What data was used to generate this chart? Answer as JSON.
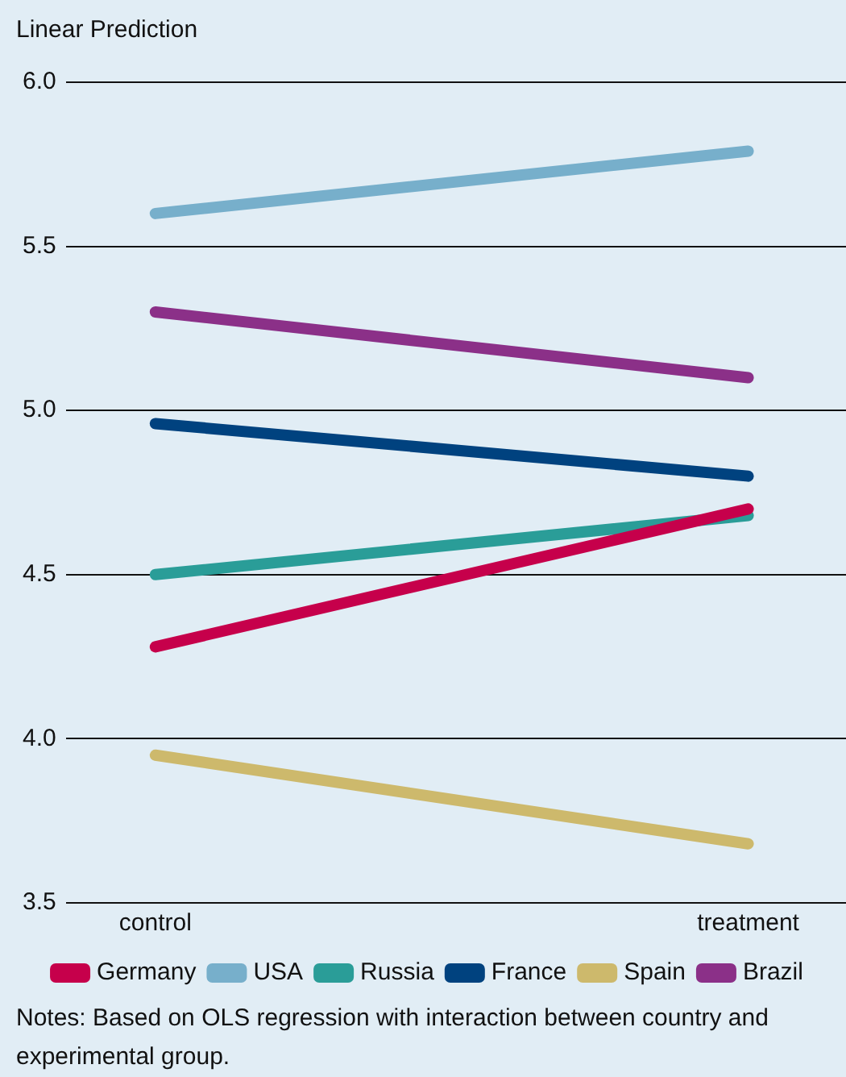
{
  "chart_data": {
    "type": "line",
    "ylabel": "Linear Prediction",
    "categories": [
      "control",
      "treatment"
    ],
    "series": [
      {
        "name": "Germany",
        "color": "#c6004b",
        "values": [
          4.28,
          4.7
        ]
      },
      {
        "name": "USA",
        "color": "#77afcb",
        "values": [
          5.6,
          5.79
        ]
      },
      {
        "name": "Russia",
        "color": "#2a9d98",
        "values": [
          4.5,
          4.68
        ]
      },
      {
        "name": "France",
        "color": "#00427f",
        "values": [
          4.96,
          4.8
        ]
      },
      {
        "name": "Spain",
        "color": "#cdb96c",
        "values": [
          3.95,
          3.68
        ]
      },
      {
        "name": "Brazil",
        "color": "#8b3088",
        "values": [
          5.3,
          5.1
        ]
      }
    ],
    "ylim": [
      3.5,
      6.0
    ],
    "yticks": [
      {
        "value": 3.5,
        "label": "3.5"
      },
      {
        "value": 4,
        "label": "4.0"
      },
      {
        "value": 4.5,
        "label": "4.5"
      },
      {
        "value": 5,
        "label": "5.0"
      },
      {
        "value": 5.5,
        "label": "5.5"
      },
      {
        "value": 6,
        "label": "6.0"
      }
    ],
    "grid": "y",
    "legend": "bottom",
    "marker": "none",
    "line_style": "solid",
    "annotations": [
      "Notes: Based on OLS regression with interaction between country and experimental group."
    ]
  }
}
